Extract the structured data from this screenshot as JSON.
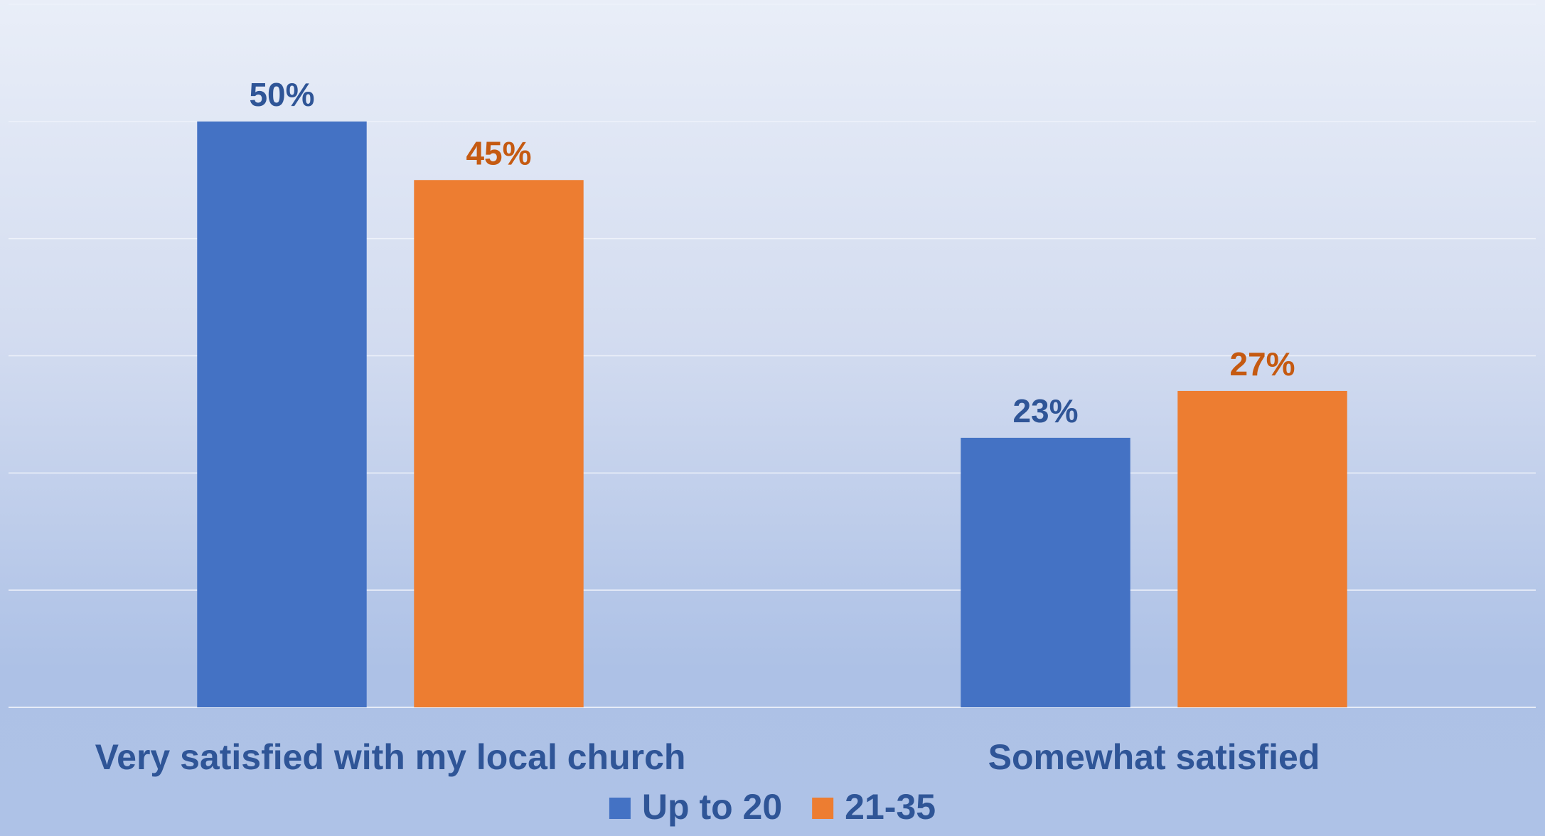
{
  "chart_data": {
    "type": "bar",
    "title": "",
    "xlabel": "",
    "ylabel": "",
    "categories": [
      "Very satisfied with my local church",
      "Somewhat satisfied"
    ],
    "series": [
      {
        "name": "Up to 20",
        "values": [
          50,
          23
        ],
        "labels": [
          "50%",
          "23%"
        ],
        "color": "#4472c4",
        "label_color": "#2f5597"
      },
      {
        "name": "21-35",
        "values": [
          45,
          27
        ],
        "labels": [
          "45%",
          "27%"
        ],
        "color": "#ed7d31",
        "label_color": "#c55a11"
      }
    ],
    "ylim": [
      0,
      60
    ],
    "y_axis_visible": false,
    "grid": true,
    "legend": "bottom"
  }
}
